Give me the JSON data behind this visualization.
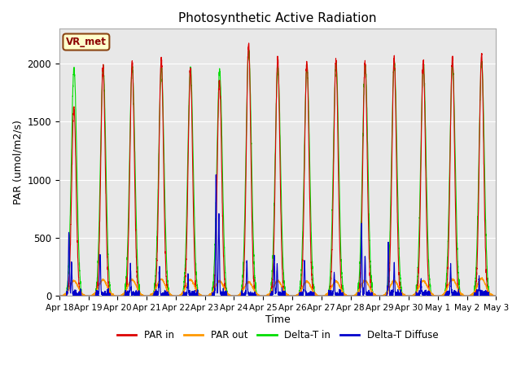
{
  "title": "Photosynthetic Active Radiation",
  "ylabel": "PAR (umol/m2/s)",
  "xlabel": "Time",
  "annotation": "VR_met",
  "ylim": [
    0,
    2300
  ],
  "legend": [
    "PAR in",
    "PAR out",
    "Delta-T in",
    "Delta-T Diffuse"
  ],
  "colors": {
    "PAR in": "#dd0000",
    "PAR out": "#ff9900",
    "Delta-T in": "#00dd00",
    "Delta-T Diffuse": "#0000cc"
  },
  "bg_color": "#e8e8e8",
  "num_days": 15,
  "tick_labels": [
    "Apr 18",
    "Apr 19",
    "Apr 20",
    "Apr 21",
    "Apr 22",
    "Apr 23",
    "Apr 24",
    "Apr 25",
    "Apr 26",
    "Apr 27",
    "Apr 28",
    "Apr 29",
    "Apr 30",
    "May 1",
    "May 2",
    "May 3"
  ]
}
